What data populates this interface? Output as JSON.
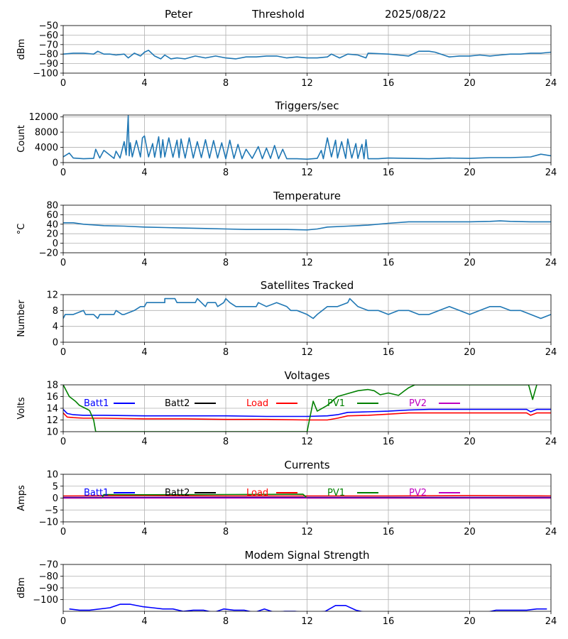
{
  "header": {
    "station": "Peter",
    "mode": "Threshold",
    "date": "2025/08/22"
  },
  "x_axis": {
    "range": [
      0,
      24
    ],
    "ticks": [
      0,
      4,
      8,
      12,
      16,
      20,
      24
    ]
  },
  "chart_data": [
    {
      "type": "line",
      "title": "",
      "ylabel": "dBm",
      "ylim": [
        -100,
        -50
      ],
      "yticks": [
        -100,
        -90,
        -80,
        -70,
        -60,
        -50
      ],
      "color": "#1f77b4",
      "x": [
        0,
        0.5,
        1,
        1.5,
        1.7,
        2,
        2.3,
        2.6,
        3,
        3.2,
        3.5,
        3.8,
        4,
        4.2,
        4.5,
        4.8,
        5,
        5.3,
        5.6,
        6,
        6.5,
        7,
        7.5,
        8,
        8.5,
        9,
        9.5,
        10,
        10.5,
        11,
        11.5,
        12,
        12.5,
        13,
        13.2,
        13.6,
        14,
        14.5,
        14.9,
        15,
        16,
        16.5,
        17,
        17.5,
        18,
        18.3,
        19,
        19.5,
        20,
        20.5,
        21,
        21.5,
        22,
        22.5,
        23,
        23.5,
        24
      ],
      "y": [
        -80,
        -79,
        -79,
        -80,
        -77,
        -80,
        -80,
        -81,
        -80,
        -84,
        -79,
        -82,
        -78,
        -76,
        -82,
        -85,
        -81,
        -85,
        -84,
        -85,
        -82,
        -84,
        -82,
        -84,
        -85,
        -83,
        -83,
        -82,
        -82,
        -84,
        -83,
        -84,
        -84,
        -83,
        -80,
        -84,
        -80,
        -81,
        -84,
        -79,
        -80,
        -81,
        -82,
        -77,
        -77,
        -78,
        -83,
        -82,
        -82,
        -81,
        -82,
        -81,
        -80,
        -80,
        -79,
        -79,
        -78
      ]
    },
    {
      "type": "line",
      "title": "Triggers/sec",
      "ylabel": "Count",
      "ylim": [
        0,
        12500
      ],
      "yticks": [
        0,
        4000,
        8000,
        12000
      ],
      "color": "#1f77b4",
      "x": [
        0,
        0.3,
        0.5,
        1,
        1.5,
        1.6,
        1.8,
        2,
        2.5,
        2.6,
        2.8,
        3,
        3.1,
        3.2,
        3.25,
        3.3,
        3.4,
        3.6,
        3.8,
        3.9,
        4,
        4.2,
        4.4,
        4.5,
        4.7,
        4.8,
        4.9,
        5,
        5.2,
        5.4,
        5.6,
        5.7,
        5.8,
        6,
        6.2,
        6.4,
        6.6,
        6.8,
        7,
        7.2,
        7.4,
        7.6,
        7.8,
        8,
        8.2,
        8.4,
        8.6,
        8.8,
        9,
        9.3,
        9.6,
        9.8,
        10,
        10.2,
        10.4,
        10.6,
        10.8,
        11,
        11.5,
        12,
        12.5,
        12.7,
        12.8,
        13,
        13.2,
        13.4,
        13.5,
        13.7,
        13.9,
        14,
        14.2,
        14.4,
        14.5,
        14.7,
        14.8,
        14.9,
        15,
        15.5,
        16,
        17,
        18,
        19,
        20,
        21,
        22,
        23,
        23.5,
        24
      ],
      "y": [
        1500,
        2500,
        1200,
        1000,
        1100,
        3500,
        1200,
        3200,
        1100,
        3000,
        1200,
        5500,
        2000,
        12300,
        1800,
        5200,
        1500,
        5800,
        1500,
        6500,
        7000,
        1500,
        5000,
        1400,
        6800,
        1300,
        6000,
        1500,
        6500,
        1400,
        5900,
        1300,
        6200,
        1200,
        6500,
        1200,
        5500,
        1300,
        6000,
        1200,
        5800,
        1200,
        5200,
        1000,
        5900,
        1100,
        4800,
        1000,
        3500,
        1100,
        4200,
        1000,
        3800,
        1100,
        4500,
        1000,
        3500,
        1000,
        1000,
        900,
        1100,
        3200,
        1000,
        6500,
        1500,
        5900,
        1200,
        5500,
        1100,
        6200,
        1200,
        5000,
        1100,
        4800,
        1000,
        6000,
        1000,
        1000,
        1200,
        1100,
        1000,
        1200,
        1100,
        1300,
        1300,
        1500,
        2200,
        1800
      ]
    },
    {
      "type": "line",
      "title": "Temperature",
      "ylabel": "°C",
      "ylim": [
        -20,
        80
      ],
      "yticks": [
        -20,
        0,
        20,
        40,
        60,
        80
      ],
      "color": "#1f77b4",
      "x": [
        0,
        0.5,
        1,
        2,
        3,
        4,
        5,
        6,
        7,
        8,
        9,
        10,
        11,
        12,
        12.5,
        13,
        14,
        15,
        16,
        17,
        18,
        19,
        20,
        21,
        21.5,
        22,
        23,
        24
      ],
      "y": [
        43,
        43,
        40,
        37,
        36,
        34,
        33,
        32,
        31,
        30,
        29,
        29,
        29,
        28,
        30,
        34,
        36,
        38,
        42,
        45,
        45,
        45,
        45,
        46,
        47,
        46,
        45,
        45
      ]
    },
    {
      "type": "line",
      "title": "Satellites Tracked",
      "ylabel": "Number",
      "ylim": [
        0,
        12
      ],
      "yticks": [
        0,
        4,
        8,
        12
      ],
      "color": "#1f77b4",
      "x": [
        0,
        0.1,
        0.5,
        1,
        1.1,
        1.5,
        1.7,
        1.8,
        2.5,
        2.6,
        2.9,
        3,
        3.5,
        3.8,
        4,
        4.1,
        4.5,
        5,
        5,
        5.5,
        5.6,
        6,
        6.5,
        6.6,
        7,
        7.1,
        7.5,
        7.6,
        7.9,
        8,
        8.2,
        8.5,
        9,
        9.5,
        9.6,
        10,
        10.5,
        11,
        11.2,
        11.5,
        12,
        12.3,
        12.5,
        13,
        13.5,
        14,
        14.1,
        14.5,
        15,
        15.5,
        16,
        16.5,
        17,
        17.5,
        18,
        18.5,
        19,
        19.5,
        20,
        20.5,
        21,
        21.5,
        22,
        22.5,
        23,
        23.5,
        24
      ],
      "y": [
        6,
        7,
        7,
        8,
        7,
        7,
        6,
        7,
        7,
        8,
        7,
        7,
        8,
        9,
        9,
        10,
        10,
        10,
        11,
        11,
        10,
        10,
        10,
        11,
        9,
        10,
        10,
        9,
        10,
        11,
        10,
        9,
        9,
        9,
        10,
        9,
        10,
        9,
        8,
        8,
        7,
        6,
        7,
        9,
        9,
        10,
        11,
        9,
        8,
        8,
        7,
        8,
        8,
        7,
        7,
        8,
        9,
        8,
        7,
        8,
        9,
        9,
        8,
        8,
        7,
        6,
        7
      ]
    },
    {
      "type": "line",
      "title": "Voltages",
      "ylabel": "Volts",
      "ylim": [
        10,
        18
      ],
      "yticks": [
        10,
        12,
        14,
        16,
        18
      ],
      "legend": [
        "Batt1",
        "Batt2",
        "Load",
        "PV1",
        "PV2"
      ],
      "series": [
        {
          "name": "Batt1",
          "color": "#0000ff",
          "x": [
            0,
            0.2,
            0.5,
            1,
            2,
            4,
            6,
            8,
            10,
            12,
            13,
            13.5,
            14,
            15,
            16,
            17,
            18,
            20,
            22,
            22.8,
            23,
            23.3,
            24
          ],
          "y": [
            13.8,
            13.1,
            12.9,
            12.8,
            12.8,
            12.7,
            12.7,
            12.7,
            12.6,
            12.6,
            12.7,
            12.9,
            13.3,
            13.4,
            13.5,
            13.7,
            13.8,
            13.8,
            13.8,
            13.8,
            13.4,
            13.8,
            13.8
          ]
        },
        {
          "name": "Batt2",
          "color": "#000000",
          "x": [],
          "y": []
        },
        {
          "name": "Load",
          "color": "#ff0000",
          "x": [
            0,
            0.2,
            0.5,
            1,
            2,
            4,
            6,
            8,
            10,
            12,
            13,
            13.5,
            14,
            15,
            16,
            17,
            18,
            20,
            22,
            22.8,
            23,
            23.3,
            24
          ],
          "y": [
            13.2,
            12.5,
            12.4,
            12.3,
            12.3,
            12.2,
            12.2,
            12.1,
            12.1,
            12.0,
            12.0,
            12.3,
            12.7,
            12.8,
            13.0,
            13.2,
            13.2,
            13.2,
            13.2,
            13.2,
            12.8,
            13.2,
            13.2
          ]
        },
        {
          "name": "PV1",
          "color": "#008000",
          "x": [
            0,
            0.3,
            0.6,
            0.8,
            1.2,
            1.3,
            1.5,
            1.6,
            12,
            12.3,
            12.5,
            13,
            13.5,
            14,
            14.5,
            15,
            15.3,
            15.6,
            16,
            16.5,
            16.8,
            17,
            17.3,
            22.9,
            23.1,
            23.3
          ],
          "y": [
            18,
            16,
            15.2,
            14.5,
            13.8,
            13.6,
            12,
            10,
            10,
            15.2,
            13.5,
            14.5,
            16,
            16.5,
            17,
            17.2,
            17,
            16.3,
            16.6,
            16.2,
            17,
            17.5,
            18,
            18,
            15.5,
            18
          ]
        },
        {
          "name": "PV2",
          "color": "#bf00bf",
          "x": [],
          "y": []
        }
      ]
    },
    {
      "type": "line",
      "title": "Currents",
      "ylabel": "Amps",
      "ylim": [
        -10,
        10
      ],
      "yticks": [
        -10,
        -5,
        0,
        5,
        10
      ],
      "legend": [
        "Batt1",
        "Batt2",
        "Load",
        "PV1",
        "PV2"
      ],
      "series": [
        {
          "name": "Batt1",
          "color": "#0000ff",
          "x": [
            0,
            24
          ],
          "y": [
            0.3,
            0.3
          ]
        },
        {
          "name": "Batt2",
          "color": "#000000",
          "x": [
            0,
            24
          ],
          "y": [
            0.1,
            0.1
          ]
        },
        {
          "name": "Load",
          "color": "#ff0000",
          "x": [
            0,
            4,
            8,
            12,
            16,
            20,
            24
          ],
          "y": [
            0.9,
            1.0,
            0.9,
            0.9,
            0.9,
            1.0,
            0.9
          ]
        },
        {
          "name": "PV1",
          "color": "#008000",
          "x": [
            0,
            1.9,
            2,
            4,
            8,
            11.8,
            12,
            24
          ],
          "y": [
            0,
            0,
            1.5,
            1.4,
            1.5,
            1.6,
            0,
            0
          ]
        },
        {
          "name": "PV2",
          "color": "#bf00bf",
          "x": [
            0,
            24
          ],
          "y": [
            0,
            0
          ]
        }
      ]
    },
    {
      "type": "line",
      "title": "Modem Signal Strength",
      "ylabel": "dBm",
      "ylim": [
        -110,
        -70
      ],
      "yticks": [
        -100,
        -90,
        -80,
        -70
      ],
      "color": "#0000ff",
      "x": [
        0.3,
        0.8,
        1.3,
        2.3,
        2.8,
        3.3,
        3.9,
        4.4,
        4.9,
        5.4,
        5.9,
        6.4,
        6.9,
        7.4,
        7.9,
        8.4,
        8.9,
        9.4,
        9.9,
        10.4,
        10.9,
        11.4,
        11.9,
        12.4,
        12.9,
        13.4,
        13.9,
        14.4,
        14.9,
        20.8,
        21.3,
        21.8,
        22.3,
        22.8,
        23.3,
        23.8
      ],
      "y": [
        -108,
        -109,
        -109,
        -107,
        -104,
        -104,
        -106,
        -107,
        -108,
        -108,
        -110,
        -109,
        -109,
        -111,
        -108,
        -109,
        -109,
        -111,
        -108,
        -111,
        -110,
        -110,
        -111,
        -111,
        -110,
        -105,
        -105,
        -109,
        -111,
        -111,
        -109,
        -109,
        -109,
        -109,
        -108,
        -108
      ]
    }
  ]
}
